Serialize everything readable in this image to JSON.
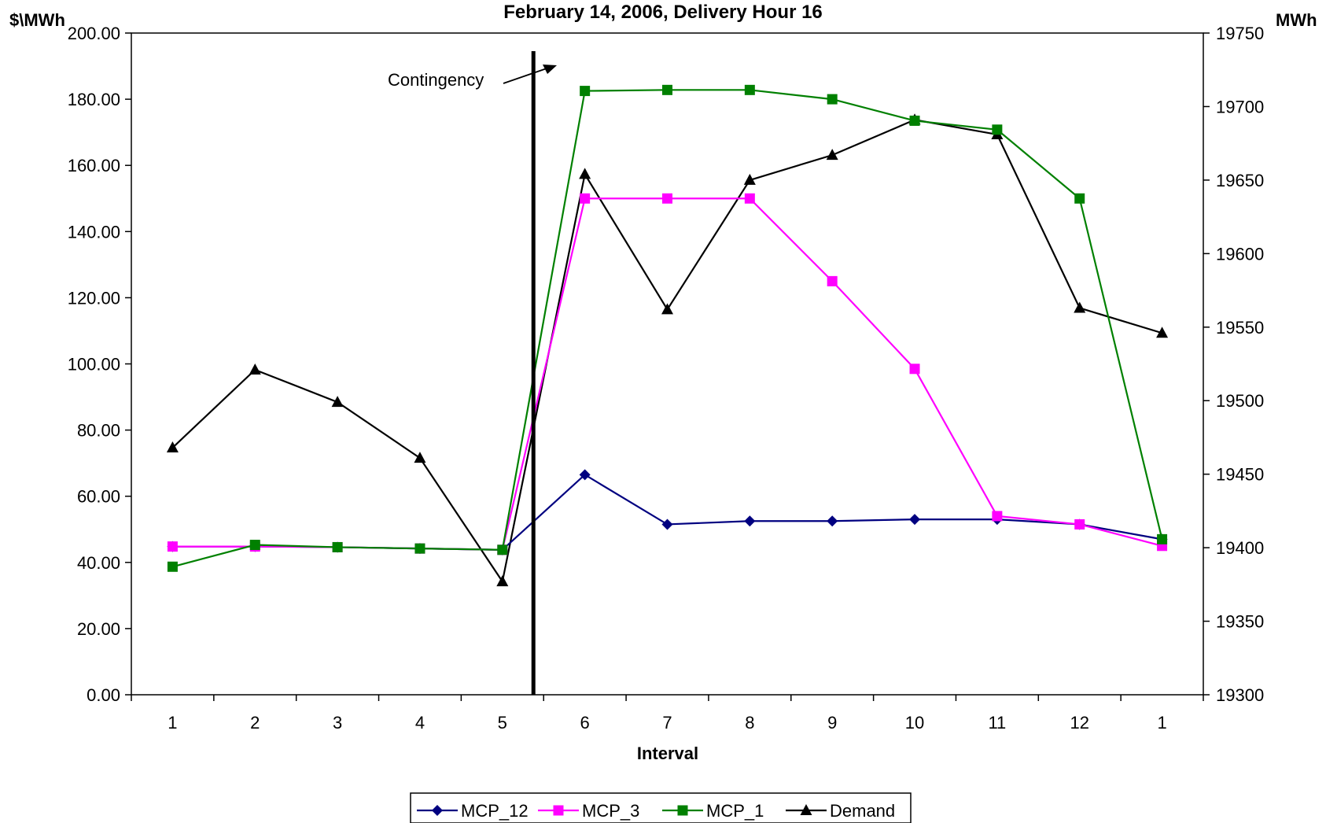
{
  "chart_data": {
    "type": "line",
    "title": "February 14, 2006, Delivery Hour 16",
    "xlabel": "Interval",
    "ylabel_left": "$\\MWh",
    "ylabel_right": "MWh",
    "categories": [
      "1",
      "2",
      "3",
      "4",
      "5",
      "6",
      "7",
      "8",
      "9",
      "10",
      "11",
      "12",
      "1"
    ],
    "ylim_left": [
      0,
      200
    ],
    "yticks_left": [
      "0.00",
      "20.00",
      "40.00",
      "60.00",
      "80.00",
      "100.00",
      "120.00",
      "140.00",
      "160.00",
      "180.00",
      "200.00"
    ],
    "ylim_right": [
      19300,
      19750
    ],
    "yticks_right": [
      "19300",
      "19350",
      "19400",
      "19450",
      "19500",
      "19550",
      "19600",
      "19650",
      "19700",
      "19750"
    ],
    "grid": false,
    "legend_position": "bottom",
    "annotation": {
      "text": "Contingency",
      "vertical_line_between_categories": [
        5,
        6
      ]
    },
    "series": [
      {
        "name": "MCP_12",
        "axis": "left",
        "color": "#000080",
        "marker": "diamond",
        "values": [
          44.8,
          44.8,
          44.6,
          44.2,
          43.8,
          66.5,
          51.5,
          52.5,
          52.5,
          53.0,
          53.0,
          51.5,
          47.0
        ]
      },
      {
        "name": "MCP_3",
        "axis": "left",
        "color": "#ff00ff",
        "marker": "square",
        "values": [
          44.8,
          44.8,
          44.6,
          44.2,
          43.8,
          150.0,
          150.0,
          150.0,
          125.0,
          98.5,
          54.0,
          51.5,
          45.0
        ]
      },
      {
        "name": "MCP_1",
        "axis": "left",
        "color": "#008000",
        "marker": "square",
        "values": [
          38.7,
          45.3,
          44.6,
          44.2,
          43.8,
          182.5,
          182.8,
          182.8,
          180.0,
          173.5,
          170.8,
          150.0,
          47.0
        ]
      },
      {
        "name": "Demand",
        "axis": "right",
        "color": "#000000",
        "marker": "triangle",
        "values": [
          19468,
          19521,
          19499,
          19461,
          19377,
          19654,
          19562,
          19650,
          19667,
          19691,
          19681,
          19563,
          19546
        ]
      }
    ]
  }
}
